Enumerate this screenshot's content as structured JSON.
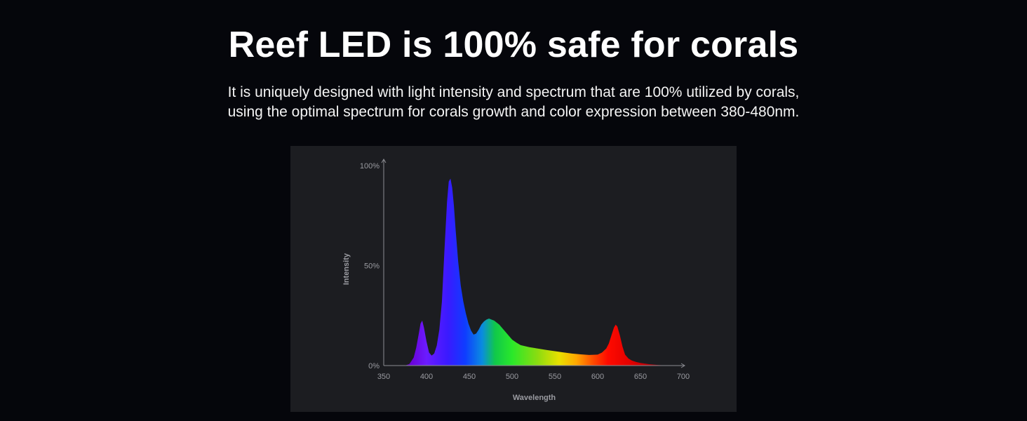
{
  "header": {
    "title": "Reef LED is 100% safe for corals",
    "subtitle_line1": "It is uniquely designed with light intensity and spectrum that are 100% utilized by corals,",
    "subtitle_line2": "using the optimal spectrum for corals growth and color expression between 380-480nm."
  },
  "chart_data": {
    "type": "area",
    "title": "",
    "xlabel": "Wavelength",
    "ylabel": "Intensity",
    "xlim": [
      350,
      700
    ],
    "ylim": [
      0,
      100
    ],
    "x_ticks": [
      "350",
      "400",
      "450",
      "500",
      "550",
      "600",
      "650",
      "700"
    ],
    "y_ticks": [
      "0%",
      "50%",
      "100%"
    ],
    "grid": false,
    "series": [
      {
        "x": [
          375,
          380,
          385,
          388,
          391,
          393,
          395,
          397,
          400,
          403,
          406,
          409,
          412,
          415,
          418,
          421,
          424,
          426,
          428,
          430,
          432,
          434,
          437,
          440,
          443,
          446,
          449,
          452,
          455,
          458,
          461,
          464,
          467,
          470,
          473,
          476,
          479,
          482,
          485,
          490,
          495,
          500,
          505,
          510,
          520,
          530,
          540,
          550,
          560,
          570,
          580,
          590,
          600,
          605,
          610,
          613,
          616,
          619,
          621,
          623,
          626,
          629,
          632,
          636,
          640,
          645,
          650,
          660,
          670,
          680
        ],
        "y": [
          0,
          0.8,
          4,
          9,
          16,
          21,
          22.5,
          19,
          12,
          6.5,
          5,
          6,
          10,
          18,
          32,
          58,
          82,
          92,
          93.5,
          89,
          80,
          68,
          52,
          40,
          32,
          26,
          21,
          17.5,
          15.5,
          16,
          18,
          20.5,
          22,
          23,
          23.5,
          23,
          22.5,
          21.5,
          20.5,
          18,
          15.5,
          13,
          11.5,
          10.2,
          9.2,
          8.5,
          7.8,
          7.2,
          6.6,
          6,
          5.6,
          5.3,
          5.5,
          6.5,
          8.5,
          11,
          15,
          19,
          20.5,
          19.5,
          15,
          9.5,
          5.5,
          3.5,
          2.5,
          1.8,
          1.3,
          0.7,
          0.3,
          0
        ]
      }
    ],
    "spectrum_colors": {
      "380": "#6a00d4",
      "400": "#6b1bff",
      "425": "#3a1aff",
      "445": "#0f3cff",
      "465": "#0a8ce0",
      "480": "#10c84a",
      "500": "#2ae82a",
      "530": "#8cdc10",
      "555": "#e8e000",
      "575": "#ffa800",
      "595": "#ff4a00",
      "612": "#ff0a00",
      "640": "#e00000",
      "680": "#8a0010"
    },
    "axis_color": "#8c8d93"
  }
}
